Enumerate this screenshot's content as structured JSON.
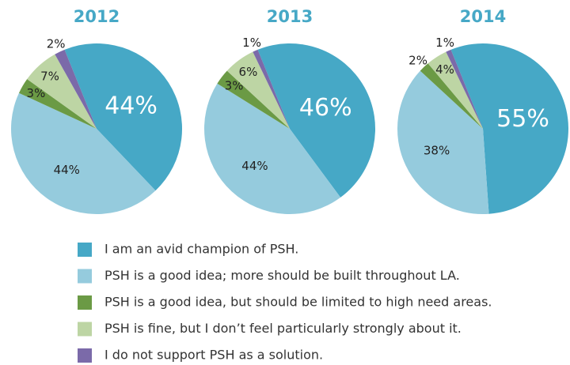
{
  "chart_data": [
    {
      "type": "pie",
      "title": "2012",
      "categories": [
        "I am an avid champion of PSH.",
        "PSH is a good idea; more should be built throughout LA.",
        "PSH is a good idea, but should be limited to high need areas.",
        "PSH is fine, but I don’t feel particularly strongly about it.",
        "I do not support PSH as a solution."
      ],
      "values": [
        44,
        44,
        3,
        7,
        2
      ],
      "value_labels": [
        "44%",
        "44%",
        "3%",
        "7%",
        "2%"
      ],
      "colors": [
        "#46a8c6",
        "#95cbdd",
        "#6b9a45",
        "#bdd5a4",
        "#7b6aa9"
      ]
    },
    {
      "type": "pie",
      "title": "2013",
      "categories": [
        "I am an avid champion of PSH.",
        "PSH is a good idea; more should be built throughout LA.",
        "PSH is a good idea, but should be limited to high need areas.",
        "PSH is fine, but I don’t feel particularly strongly about it.",
        "I do not support PSH as a solution."
      ],
      "values": [
        46,
        44,
        3,
        6,
        1
      ],
      "value_labels": [
        "46%",
        "44%",
        "3%",
        "6%",
        "1%"
      ],
      "colors": [
        "#46a8c6",
        "#95cbdd",
        "#6b9a45",
        "#bdd5a4",
        "#7b6aa9"
      ]
    },
    {
      "type": "pie",
      "title": "2014",
      "categories": [
        "I am an avid champion of PSH.",
        "PSH is a good idea; more should be built throughout LA.",
        "PSH is a good idea, but should be limited to high need areas.",
        "PSH is fine, but I don’t feel particularly strongly about it.",
        "I do not support PSH as a solution."
      ],
      "values": [
        55,
        38,
        2,
        4,
        1
      ],
      "value_labels": [
        "55%",
        "38%",
        "2%",
        "4%",
        "1%"
      ],
      "colors": [
        "#46a8c6",
        "#95cbdd",
        "#6b9a45",
        "#bdd5a4",
        "#7b6aa9"
      ]
    }
  ]
}
